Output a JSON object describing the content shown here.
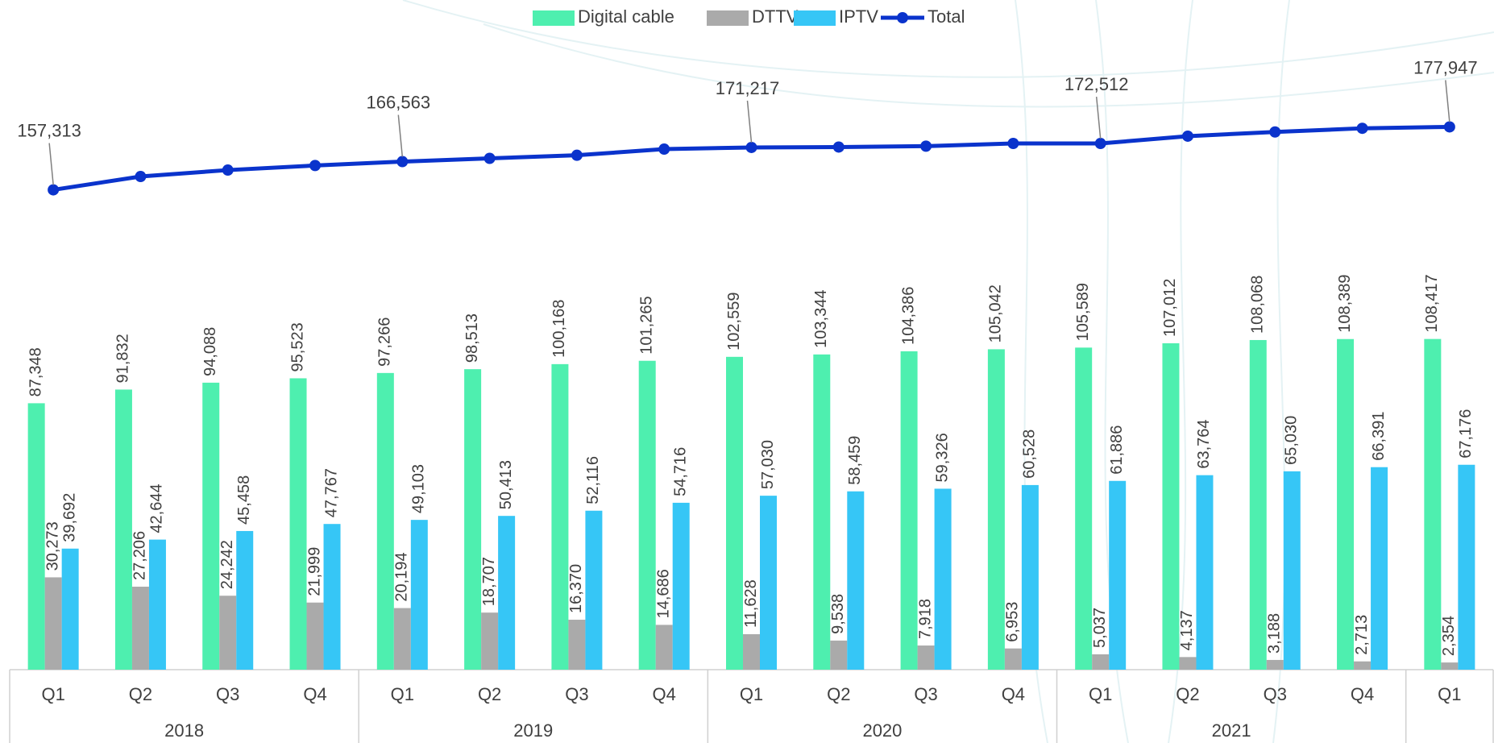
{
  "chart_data": {
    "type": "bar",
    "groups": [
      {
        "label": "2018",
        "categories": [
          "Q1",
          "Q2",
          "Q3",
          "Q4"
        ]
      },
      {
        "label": "2019",
        "categories": [
          "Q1",
          "Q2",
          "Q3",
          "Q4"
        ]
      },
      {
        "label": "2020",
        "categories": [
          "Q1",
          "Q2",
          "Q3",
          "Q4"
        ]
      },
      {
        "label": "2021",
        "categories": [
          "Q1",
          "Q2",
          "Q3",
          "Q4"
        ]
      },
      {
        "label": null,
        "categories": [
          "Q1"
        ]
      }
    ],
    "ylim": [
      0,
      200000
    ],
    "legend": "top",
    "series": [
      {
        "name": "Digital cable",
        "type": "bar",
        "color": "#4eefaf",
        "values": [
          87348,
          91832,
          94088,
          95523,
          97266,
          98513,
          100168,
          101265,
          102559,
          103344,
          104386,
          105042,
          105589,
          107012,
          108068,
          108389,
          108417
        ],
        "value_labels": [
          "87,348",
          "91,832",
          "94,088",
          "95,523",
          "97,266",
          "98,513",
          "100,168",
          "101,265",
          "102,559",
          "103,344",
          "104,386",
          "105,042",
          "105,589",
          "107,012",
          "108,068",
          "108,389",
          "108,417"
        ]
      },
      {
        "name": "DTTV",
        "type": "bar",
        "color": "#aaaaaa",
        "values": [
          30273,
          27206,
          24242,
          21999,
          20194,
          18707,
          16370,
          14686,
          11628,
          9538,
          7918,
          6953,
          5037,
          4137,
          3188,
          2713,
          2354
        ],
        "value_labels": [
          "30,273",
          "27,206",
          "24,242",
          "21,999",
          "20,194",
          "18,707",
          "16,370",
          "14,686",
          "11,628",
          "9,538",
          "7,918",
          "6,953",
          "5,037",
          "4,137",
          "3,188",
          "2,713",
          "2,354"
        ]
      },
      {
        "name": "IPTV",
        "type": "bar",
        "color": "#36c6f6",
        "values": [
          39692,
          42644,
          45458,
          47767,
          49103,
          50413,
          52116,
          54716,
          57030,
          58459,
          59326,
          60528,
          61886,
          63764,
          65030,
          66391,
          67176
        ],
        "value_labels": [
          "39,692",
          "42,644",
          "45,458",
          "47,767",
          "49,103",
          "50,413",
          "52,116",
          "54,716",
          "57,030",
          "58,459",
          "59,326",
          "60,528",
          "61,886",
          "63,764",
          "65,030",
          "66,391",
          "67,176"
        ]
      },
      {
        "name": "Total",
        "type": "line",
        "color": "#0a33cc",
        "values": [
          157313,
          161682,
          163788,
          165289,
          166563,
          167633,
          168654,
          170667,
          171217,
          171341,
          171630,
          172523,
          172512,
          174913,
          176286,
          177493,
          177947
        ],
        "value_labels": [
          "157,313",
          null,
          null,
          null,
          "166,563",
          null,
          null,
          null,
          "171,217",
          null,
          null,
          null,
          "172,512",
          null,
          null,
          null,
          "177,947"
        ]
      }
    ]
  }
}
